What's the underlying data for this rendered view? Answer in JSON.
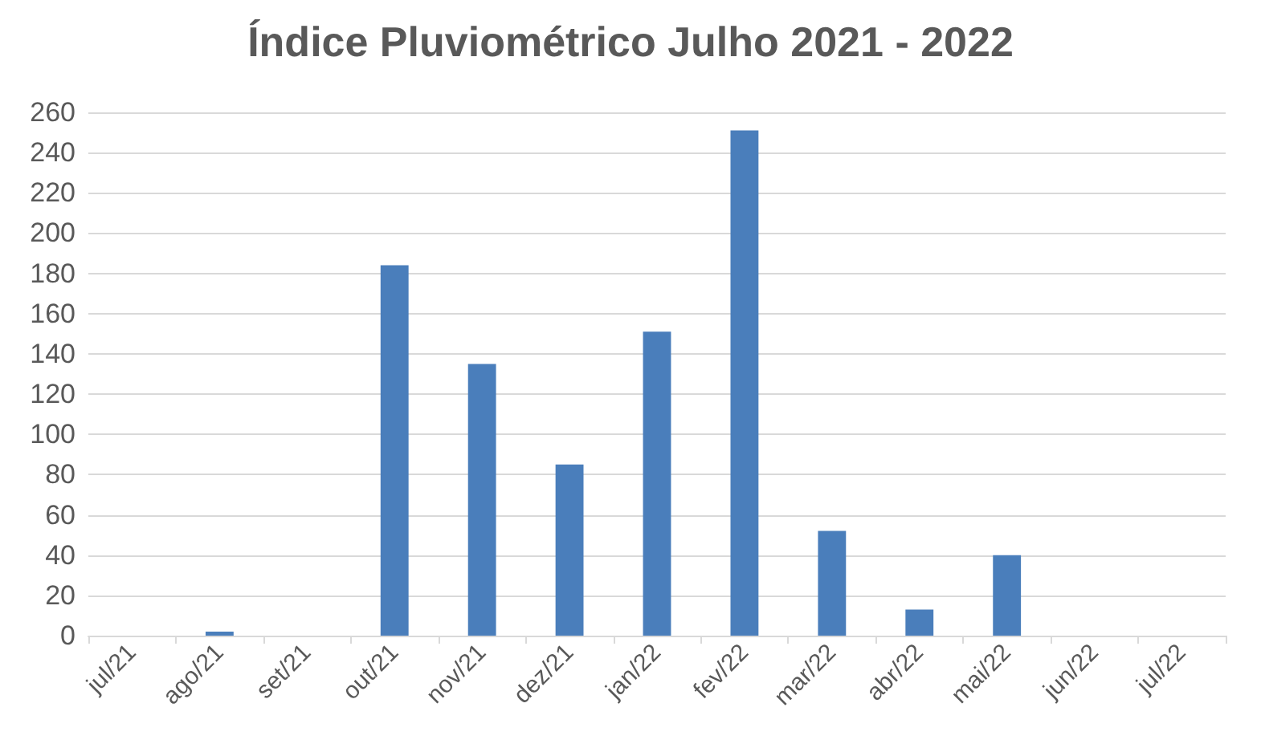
{
  "chart_data": {
    "type": "bar",
    "title": "Índice Pluviométrico Julho 2021 - 2022",
    "categories": [
      "jul/21",
      "ago/21",
      "set/21",
      "out/21",
      "nov/21",
      "dez/21",
      "jan/22",
      "fev/22",
      "mar/22",
      "abr/22",
      "mai/22",
      "jun/22",
      "jul/22"
    ],
    "values": [
      0,
      2,
      0,
      184,
      135,
      85,
      151,
      251,
      52,
      13,
      40,
      0,
      0
    ],
    "color": "#4a7ebb",
    "ylim": [
      0,
      260
    ],
    "yticks": [
      0,
      20,
      40,
      60,
      80,
      100,
      120,
      140,
      160,
      180,
      200,
      220,
      240,
      260
    ],
    "grid": "y"
  }
}
